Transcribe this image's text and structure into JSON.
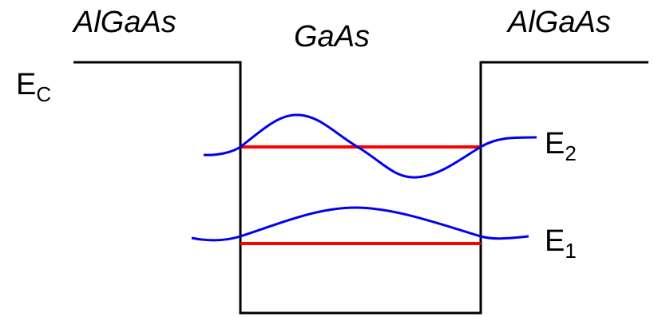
{
  "regions": {
    "left_barrier": "AlGaAs",
    "well": "GaAs",
    "right_barrier": "AlGaAs"
  },
  "band_edge": {
    "symbol": "E",
    "subscript": "C"
  },
  "levels": [
    {
      "symbol": "E",
      "subscript": "2"
    },
    {
      "symbol": "E",
      "subscript": "1"
    }
  ],
  "colors": {
    "band_edge": "#000000",
    "energy_level": "#ff0000",
    "wavefunction": "#0000ee"
  }
}
